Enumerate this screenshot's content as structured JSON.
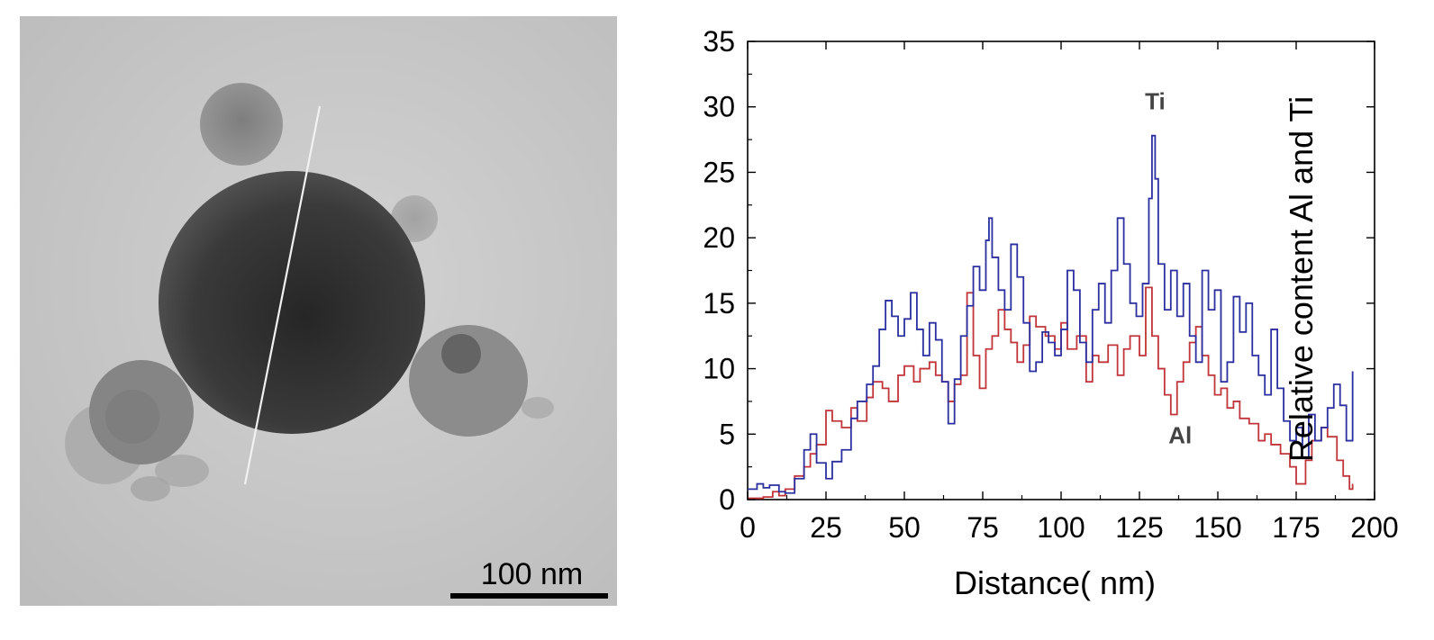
{
  "micrograph": {
    "scale_bar_label": "100 nm"
  },
  "chart_data": {
    "type": "line",
    "xlabel": "Distance( nm)",
    "ylabel": "Relative content Al and Ti",
    "xlim": [
      0,
      200
    ],
    "ylim": [
      0,
      35
    ],
    "xticks": [
      0,
      25,
      50,
      75,
      100,
      125,
      150,
      175,
      200
    ],
    "yticks": [
      0,
      5,
      10,
      15,
      20,
      25,
      30,
      35
    ],
    "grid": false,
    "colors": {
      "Ti": "#2b2fa0",
      "Al": "#c0343a",
      "axis": "#000000"
    },
    "annotations": [
      {
        "text": "Ti",
        "x": 130,
        "y": 29.8,
        "series": "Ti"
      },
      {
        "text": "Al",
        "x": 138,
        "y": 4.3,
        "series": "Al"
      }
    ],
    "series": [
      {
        "name": "Ti",
        "x": [
          0,
          3,
          5,
          7,
          10,
          12,
          15,
          18,
          20,
          22,
          25,
          27,
          30,
          33,
          35,
          38,
          40,
          42,
          44,
          46,
          48,
          50,
          52,
          54,
          56,
          58,
          60,
          62,
          64,
          66,
          68,
          70,
          72,
          74,
          76,
          77,
          78,
          80,
          82,
          84,
          86,
          88,
          90,
          92,
          94,
          96,
          98,
          100,
          102,
          104,
          106,
          108,
          110,
          112,
          114,
          116,
          118,
          120,
          122,
          124,
          126,
          128,
          129,
          130,
          131,
          133,
          135,
          137,
          139,
          141,
          143,
          145,
          147,
          149,
          151,
          153,
          155,
          157,
          159,
          161,
          163,
          165,
          167,
          169,
          171,
          173,
          175,
          177,
          179,
          181,
          183,
          185,
          187,
          189,
          191,
          193
        ],
        "y": [
          0.8,
          1.2,
          0.9,
          1.1,
          0.6,
          0.5,
          1.6,
          3.8,
          5.0,
          2.8,
          1.6,
          2.9,
          3.8,
          6.2,
          7.5,
          8.8,
          10.2,
          13.0,
          15.2,
          14.0,
          12.5,
          13.8,
          15.8,
          13.0,
          11.0,
          13.5,
          12.2,
          9.0,
          5.8,
          9.2,
          12.5,
          14.8,
          17.8,
          16.0,
          19.8,
          21.5,
          18.5,
          16.0,
          14.5,
          19.5,
          17.0,
          13.5,
          9.8,
          10.5,
          12.8,
          12.0,
          11.0,
          13.0,
          17.5,
          16.0,
          12.0,
          10.5,
          14.5,
          16.5,
          13.5,
          17.5,
          21.5,
          18.0,
          15.0,
          14.0,
          16.5,
          23.0,
          27.8,
          24.5,
          18.0,
          14.5,
          17.5,
          14.0,
          16.5,
          12.5,
          10.5,
          17.5,
          14.5,
          16.0,
          9.0,
          10.5,
          15.5,
          12.8,
          15.0,
          11.0,
          9.5,
          8.0,
          13.0,
          8.5,
          6.0,
          4.5,
          5.5,
          3.2,
          6.5,
          4.5,
          5.5,
          7.0,
          8.8,
          7.2,
          4.5,
          9.8
        ]
      },
      {
        "name": "Al",
        "x": [
          0,
          5,
          8,
          10,
          12,
          15,
          18,
          20,
          22,
          25,
          27,
          30,
          33,
          35,
          38,
          40,
          43,
          45,
          48,
          50,
          53,
          55,
          58,
          60,
          62,
          64,
          66,
          68,
          70,
          72,
          74,
          76,
          78,
          80,
          82,
          84,
          86,
          88,
          90,
          92,
          95,
          98,
          100,
          102,
          105,
          108,
          110,
          112,
          115,
          118,
          120,
          122,
          125,
          127,
          129,
          131,
          133,
          135,
          137,
          139,
          141,
          143,
          145,
          147,
          149,
          151,
          153,
          155,
          157,
          160,
          163,
          165,
          167,
          170,
          173,
          175,
          178,
          180,
          183,
          185,
          188,
          190,
          192,
          193
        ],
        "y": [
          0.1,
          0.2,
          0.6,
          0.3,
          0.8,
          1.8,
          2.5,
          3.5,
          4.2,
          6.8,
          6.0,
          5.5,
          7.0,
          6.0,
          7.8,
          9.0,
          8.5,
          7.5,
          9.5,
          10.2,
          9.0,
          10.0,
          10.5,
          9.5,
          9.0,
          7.5,
          8.8,
          9.5,
          15.8,
          11.0,
          8.5,
          11.5,
          12.5,
          14.5,
          13.0,
          12.0,
          10.5,
          11.8,
          14.0,
          13.2,
          12.5,
          11.5,
          13.5,
          11.5,
          12.5,
          9.0,
          11.0,
          10.5,
          11.8,
          9.5,
          11.5,
          12.5,
          11.0,
          16.2,
          12.5,
          10.0,
          8.0,
          6.5,
          9.0,
          10.5,
          12.0,
          13.2,
          11.0,
          9.5,
          8.0,
          8.5,
          7.0,
          7.5,
          6.2,
          5.8,
          4.5,
          5.0,
          4.2,
          3.5,
          2.5,
          1.2,
          3.0,
          4.5,
          5.5,
          4.8,
          3.0,
          1.8,
          0.8,
          1.2
        ]
      }
    ]
  }
}
